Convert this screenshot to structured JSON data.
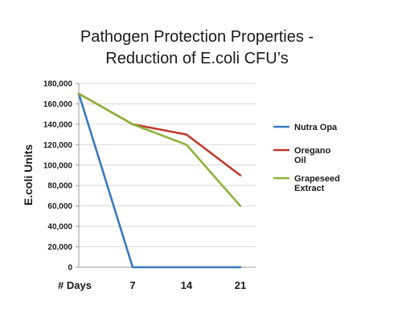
{
  "chart_data": {
    "type": "line",
    "title_lines": [
      "Pathogen Protection  Properties -",
      "Reduction of E.coli CFU’s"
    ],
    "ylabel": "E.coli Units",
    "x_axis_caption": "# Days",
    "x": [
      0,
      7,
      14,
      21
    ],
    "x_tick_labels": [
      "",
      "7",
      "14",
      "21"
    ],
    "ylim": [
      0,
      180000
    ],
    "y_ticks": [
      0,
      20000,
      40000,
      60000,
      80000,
      100000,
      120000,
      140000,
      160000,
      180000
    ],
    "y_tick_labels": [
      "0",
      "20,000",
      "40,000",
      "60,000",
      "80,000",
      "100,000",
      "120,000",
      "140,000",
      "160,000",
      "180,000"
    ],
    "grid": true,
    "legend_position": "right",
    "series": [
      {
        "name_lines": [
          "Nutra Opa"
        ],
        "color": "#3a7abf",
        "values": [
          170000,
          0,
          0,
          0
        ]
      },
      {
        "name_lines": [
          "Oregano",
          "Oil"
        ],
        "color": "#c0392b",
        "values": [
          170000,
          140000,
          130000,
          90000
        ]
      },
      {
        "name_lines": [
          "Grapeseed",
          "Extract"
        ],
        "color": "#8db33a",
        "values": [
          170000,
          140000,
          120000,
          60000
        ]
      }
    ]
  }
}
